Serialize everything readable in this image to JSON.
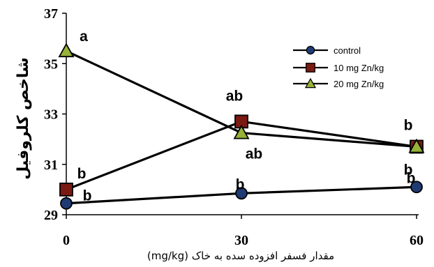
{
  "chart_data": {
    "type": "line",
    "x": [
      0,
      30,
      60
    ],
    "x_tick_labels": [
      "0",
      "30",
      "60"
    ],
    "ylim": [
      29,
      37
    ],
    "y_ticks": [
      29,
      31,
      33,
      35,
      37
    ],
    "ylabel": "شاخص کلروفیل",
    "xlabel": "مقدار فسفر افزوده سده به خاک (mg/kg)",
    "grid": false,
    "legend_position": "top-right",
    "series": [
      {
        "name": "control",
        "marker": "circle",
        "marker_color": "#1f3b73",
        "values": [
          29.45,
          29.85,
          30.1
        ],
        "labels": [
          "b",
          "b",
          "b"
        ]
      },
      {
        "name": "10 mg Zn/kg",
        "marker": "square",
        "marker_color": "#7b1a12",
        "values": [
          30.0,
          32.7,
          31.7
        ],
        "labels": [
          "b",
          "ab",
          "b"
        ]
      },
      {
        "name": "20 mg Zn/kg",
        "marker": "triangle",
        "marker_color": "#96b238",
        "values": [
          35.5,
          32.25,
          31.7
        ],
        "labels": [
          "a",
          "ab",
          "b"
        ]
      }
    ]
  }
}
